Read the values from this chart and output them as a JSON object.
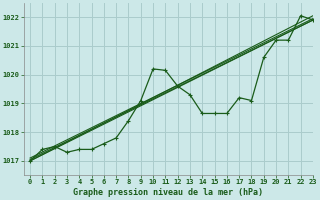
{
  "title": "Graphe pression niveau de la mer (hPa)",
  "xlim": [
    -0.5,
    23
  ],
  "ylim": [
    1016.5,
    1022.5
  ],
  "yticks": [
    1017,
    1018,
    1019,
    1020,
    1021,
    1022
  ],
  "xticks": [
    0,
    1,
    2,
    3,
    4,
    5,
    6,
    7,
    8,
    9,
    10,
    11,
    12,
    13,
    14,
    15,
    16,
    17,
    18,
    19,
    20,
    21,
    22,
    23
  ],
  "bg_color": "#cce8e8",
  "grid_color": "#aacccc",
  "line_color": "#1a5c1a",
  "main_series": [
    1017.0,
    1017.4,
    1017.5,
    1017.3,
    1017.4,
    1017.4,
    1017.6,
    1017.8,
    1018.4,
    1019.1,
    1020.2,
    1020.15,
    1019.6,
    1019.3,
    1018.65,
    1018.65,
    1018.65,
    1019.2,
    1019.1,
    1020.6,
    1021.2,
    1021.2,
    1022.05,
    1021.9
  ],
  "straight_lines": [
    [
      1017.0,
      1021.9
    ],
    [
      1017.0,
      1022.05
    ],
    [
      1017.1,
      1021.95
    ],
    [
      1017.05,
      1021.9
    ]
  ]
}
